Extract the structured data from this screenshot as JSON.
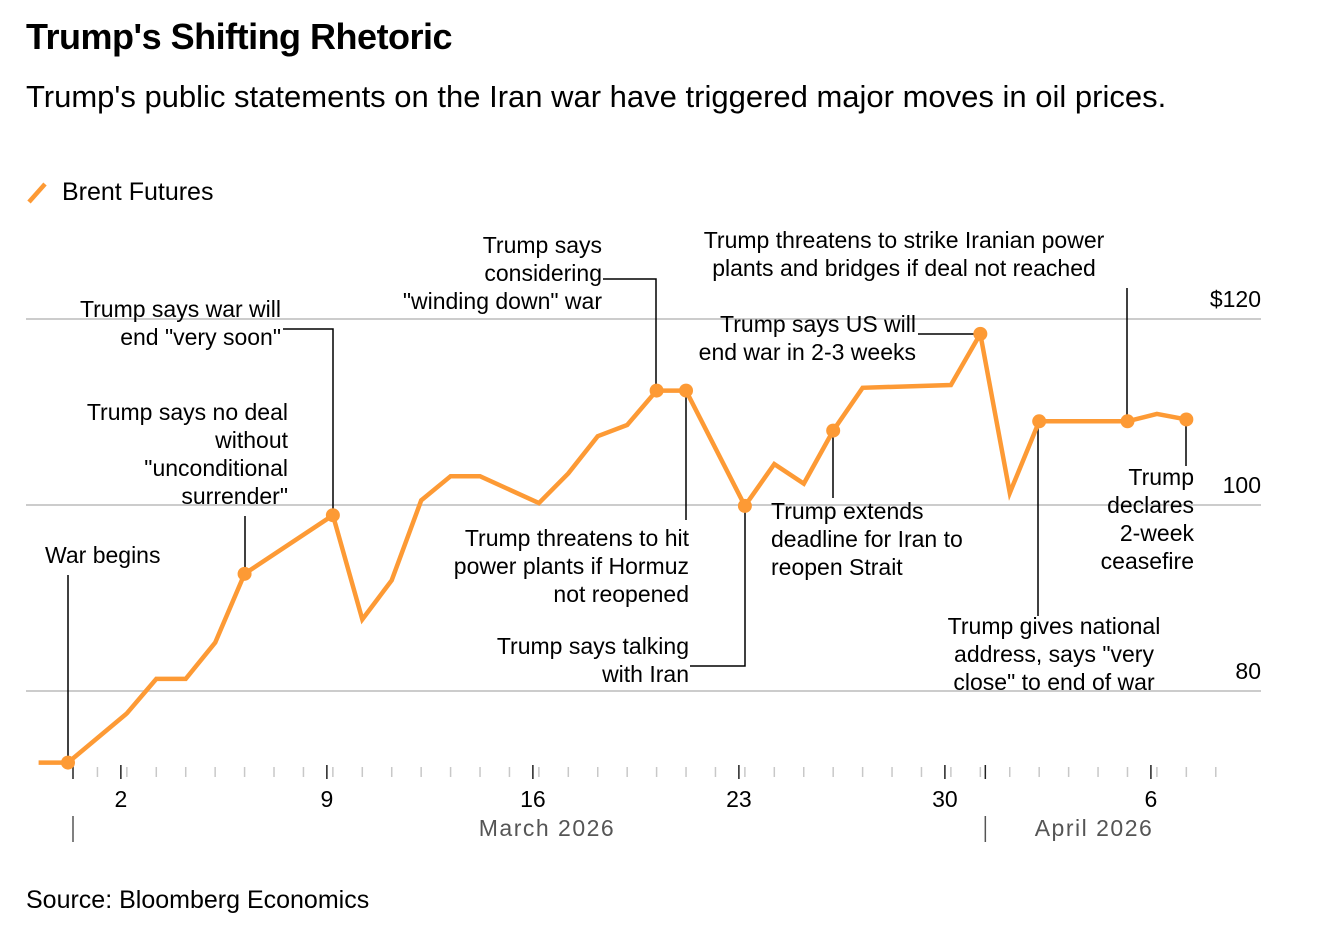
{
  "header": {
    "title": "Trump's Shifting Rhetoric",
    "subtitle": "Trump's public statements on the Iran war have triggered major moves in oil prices."
  },
  "legend": {
    "label": "Brent Futures",
    "color": "#fd9a35"
  },
  "footer": {
    "source": "Source: Bloomberg Economics"
  },
  "chart_data": {
    "type": "line",
    "title": "Trump's Shifting Rhetoric",
    "xlabel": "",
    "ylabel": "",
    "ylim": [
      72.3,
      125
    ],
    "grid": true,
    "legend_position": "top-left",
    "y_ticks": [
      {
        "value": 120,
        "label": "$120"
      },
      {
        "value": 100,
        "label": "100"
      },
      {
        "value": 80,
        "label": "80"
      }
    ],
    "x_ticks": [
      {
        "day": 2,
        "label": "2"
      },
      {
        "day": 9,
        "label": "9"
      },
      {
        "day": 16,
        "label": "16"
      },
      {
        "day": 23,
        "label": "23"
      },
      {
        "day": 30,
        "label": "30"
      },
      {
        "day": 37,
        "label": "6"
      }
    ],
    "month_labels": [
      {
        "day": 1,
        "label": "March 2026"
      },
      {
        "day": 32,
        "label": "April 2026"
      }
    ],
    "x_note": "day = days since Feb 28 2026 counted as March day numbers (Apr 1 = 32)",
    "series": [
      {
        "name": "Brent Futures",
        "color": "#fd9a35",
        "points": [
          {
            "date": "Feb 27",
            "day": -1,
            "value": 72.3
          },
          {
            "date": "Feb 28",
            "day": 0,
            "value": 72.3
          },
          {
            "date": "Mar 2",
            "day": 2,
            "value": 77.6
          },
          {
            "date": "Mar 3",
            "day": 3,
            "value": 81.3
          },
          {
            "date": "Mar 4",
            "day": 4,
            "value": 81.3
          },
          {
            "date": "Mar 5",
            "day": 5,
            "value": 85.2
          },
          {
            "date": "Mar 6",
            "day": 6,
            "value": 92.6
          },
          {
            "date": "Mar 9",
            "day": 9,
            "value": 98.9
          },
          {
            "date": "Mar 10",
            "day": 10,
            "value": 87.7
          },
          {
            "date": "Mar 11",
            "day": 11,
            "value": 91.9
          },
          {
            "date": "Mar 12",
            "day": 12,
            "value": 100.5
          },
          {
            "date": "Mar 13",
            "day": 13,
            "value": 103.1
          },
          {
            "date": "Mar 14",
            "day": 14,
            "value": 103.1
          },
          {
            "date": "Mar 16",
            "day": 16,
            "value": 100.2
          },
          {
            "date": "Mar 17",
            "day": 17,
            "value": 103.4
          },
          {
            "date": "Mar 18",
            "day": 18,
            "value": 107.4
          },
          {
            "date": "Mar 19",
            "day": 19,
            "value": 108.6
          },
          {
            "date": "Mar 20",
            "day": 20,
            "value": 112.3
          },
          {
            "date": "Mar 21",
            "day": 21,
            "value": 112.3
          },
          {
            "date": "Mar 23",
            "day": 23,
            "value": 99.9
          },
          {
            "date": "Mar 24",
            "day": 24,
            "value": 104.4
          },
          {
            "date": "Mar 25",
            "day": 25,
            "value": 102.3
          },
          {
            "date": "Mar 26",
            "day": 26,
            "value": 108.0
          },
          {
            "date": "Mar 27",
            "day": 27,
            "value": 112.6
          },
          {
            "date": "Mar 30",
            "day": 30,
            "value": 112.9
          },
          {
            "date": "Mar 31",
            "day": 31,
            "value": 118.4
          },
          {
            "date": "Apr 1",
            "day": 32,
            "value": 101.3
          },
          {
            "date": "Apr 2",
            "day": 33,
            "value": 109.0
          },
          {
            "date": "Apr 5",
            "day": 36,
            "value": 109.0
          },
          {
            "date": "Apr 6",
            "day": 37,
            "value": 109.8
          },
          {
            "date": "Apr 7",
            "day": 38,
            "value": 109.2
          }
        ]
      }
    ],
    "annotations": [
      {
        "day": 0,
        "value": 72.3,
        "lines": [
          "War begins"
        ]
      },
      {
        "day": 6,
        "value": 92.6,
        "lines": [
          "Trump says no deal",
          "without",
          "\"unconditional",
          "surrender\""
        ]
      },
      {
        "day": 9,
        "value": 98.9,
        "lines": [
          "Trump says war will",
          "end \"very soon\""
        ]
      },
      {
        "day": 20,
        "value": 112.3,
        "lines": [
          "Trump says",
          "considering",
          "\"winding down\" war"
        ]
      },
      {
        "day": 21,
        "value": 112.3,
        "lines": [
          "Trump threatens to hit",
          "power plants if Hormuz",
          "not reopened"
        ]
      },
      {
        "day": 23,
        "value": 99.9,
        "lines": [
          "Trump says talking",
          "with Iran"
        ]
      },
      {
        "day": 26,
        "value": 108.0,
        "lines": [
          "Trump extends",
          "deadline for Iran to",
          "reopen Strait"
        ]
      },
      {
        "day": 31,
        "value": 118.4,
        "lines": [
          "Trump says US will",
          "end war in 2-3 weeks"
        ]
      },
      {
        "day": 33,
        "value": 109.0,
        "lines": [
          "Trump gives national",
          "address, says \"very",
          "close\" to end of war"
        ]
      },
      {
        "day": 36,
        "value": 109.0,
        "lines": [
          "Trump threatens to strike Iranian power",
          "plants and bridges if deal not reached"
        ]
      },
      {
        "day": 38,
        "value": 109.2,
        "lines": [
          "Trump",
          "declares",
          "2-week",
          "ceasefire"
        ]
      }
    ]
  }
}
